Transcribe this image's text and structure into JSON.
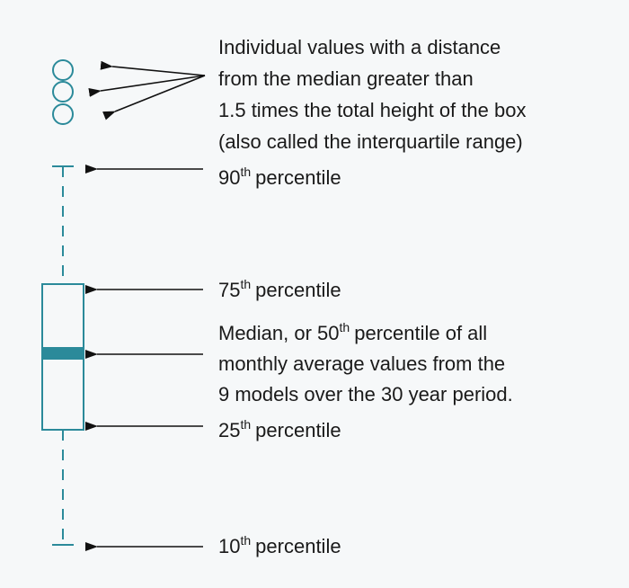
{
  "outliers": {
    "lines": [
      "Individual values with a distance",
      "from the median greater than",
      "1.5 times the total height of the box",
      "(also called the interquartile range)"
    ]
  },
  "p90": {
    "number": "90",
    "suffix": "th",
    "text": "percentile"
  },
  "p75": {
    "number": "75",
    "suffix": "th",
    "text": "percentile"
  },
  "median": {
    "line1_start": "Median, or 50",
    "line1_suffix": "th",
    "line1_end": "percentile of all",
    "line2": "monthly average values from the",
    "line3": "9 models over the 30 year period."
  },
  "p25": {
    "number": "25",
    "suffix": "th",
    "text": "percentile"
  },
  "p10": {
    "number": "10",
    "suffix": "th",
    "text": "percentile"
  }
}
